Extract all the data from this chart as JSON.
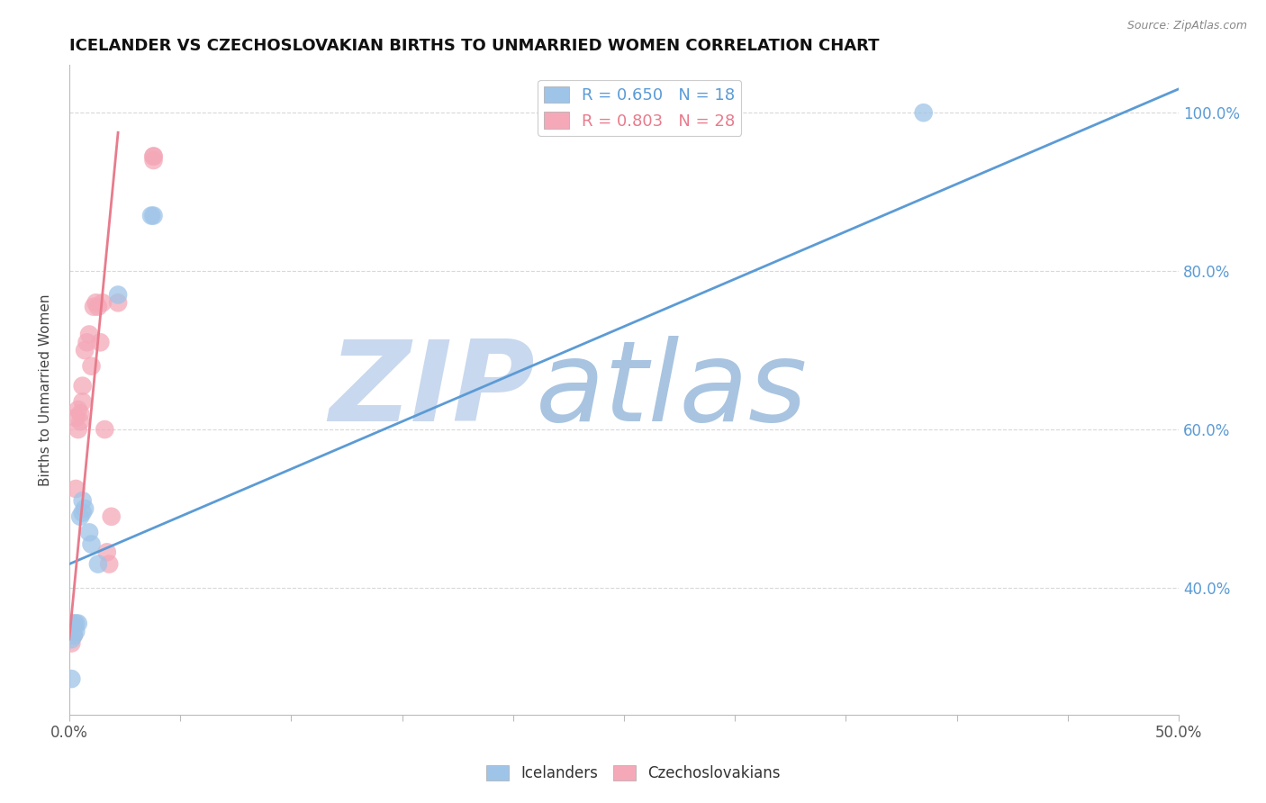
{
  "title": "ICELANDER VS CZECHOSLOVAKIAN BIRTHS TO UNMARRIED WOMEN CORRELATION CHART",
  "source": "Source: ZipAtlas.com",
  "ylabel": "Births to Unmarried Women",
  "xlim": [
    0.0,
    0.5
  ],
  "ylim": [
    0.24,
    1.06
  ],
  "ytick_labels": [
    "40.0%",
    "60.0%",
    "80.0%",
    "100.0%"
  ],
  "ytick_values": [
    0.4,
    0.6,
    0.8,
    1.0
  ],
  "icelanders": {
    "color": "#9ec4e8",
    "line_color": "#5b9bd5",
    "R": 0.65,
    "N": 18,
    "label": "Icelanders",
    "x": [
      0.001,
      0.001,
      0.002,
      0.002,
      0.003,
      0.003,
      0.004,
      0.005,
      0.006,
      0.006,
      0.007,
      0.009,
      0.01,
      0.013,
      0.022,
      0.037,
      0.038,
      0.385
    ],
    "y": [
      0.285,
      0.335,
      0.34,
      0.355,
      0.345,
      0.355,
      0.355,
      0.49,
      0.495,
      0.51,
      0.5,
      0.47,
      0.455,
      0.43,
      0.77,
      0.87,
      0.87,
      1.0
    ]
  },
  "czechoslovakians": {
    "color": "#f4a8b8",
    "line_color": "#e87b8c",
    "R": 0.803,
    "N": 28,
    "label": "Czechoslovakians",
    "x": [
      0.001,
      0.001,
      0.002,
      0.003,
      0.003,
      0.004,
      0.004,
      0.005,
      0.005,
      0.006,
      0.006,
      0.007,
      0.008,
      0.009,
      0.01,
      0.011,
      0.012,
      0.013,
      0.014,
      0.015,
      0.016,
      0.017,
      0.018,
      0.019,
      0.022,
      0.038,
      0.038,
      0.038
    ],
    "y": [
      0.33,
      0.355,
      0.34,
      0.525,
      0.615,
      0.6,
      0.625,
      0.61,
      0.62,
      0.635,
      0.655,
      0.7,
      0.71,
      0.72,
      0.68,
      0.755,
      0.76,
      0.755,
      0.71,
      0.76,
      0.6,
      0.445,
      0.43,
      0.49,
      0.76,
      0.945,
      0.94,
      0.945
    ]
  },
  "blue_line": {
    "x": [
      0.0,
      0.5
    ],
    "y": [
      0.43,
      1.03
    ]
  },
  "pink_line": {
    "x": [
      0.0,
      0.022
    ],
    "y": [
      0.335,
      0.975
    ]
  },
  "watermark_zip": "ZIP",
  "watermark_atlas": "atlas",
  "watermark_color_zip": "#c8d8ee",
  "watermark_color_atlas": "#a8c4e0",
  "background_color": "#ffffff",
  "grid_color": "#d8d8d8"
}
